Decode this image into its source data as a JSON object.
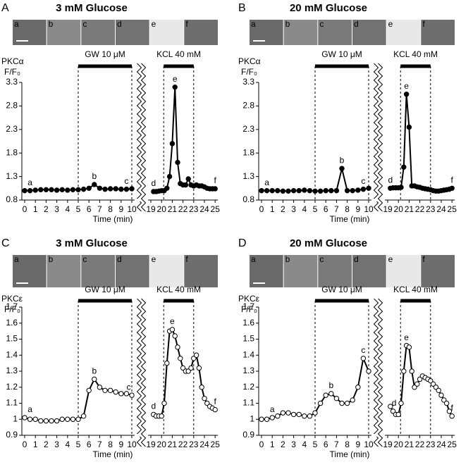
{
  "chart_data": [
    {
      "type": "line",
      "panel": "A",
      "title": "3 mM Glucose",
      "image_labels": [
        "a",
        "b",
        "c",
        "d",
        "e",
        "f"
      ],
      "ylabel": "PKCα",
      "yunit": "F/F₀",
      "xlabel": "Time (min)",
      "marker_fill": "#000000",
      "color": "#000000",
      "xlim": [
        0,
        25
      ],
      "xbreak": [
        10,
        19
      ],
      "xticks": [
        0,
        1,
        2,
        3,
        4,
        5,
        6,
        7,
        8,
        9,
        10,
        19,
        20,
        21,
        22,
        23,
        24,
        25
      ],
      "ylim": [
        0.8,
        3.3
      ],
      "yticks": [
        0.8,
        1.3,
        1.8,
        2.3,
        2.8,
        3.3
      ],
      "treatments": [
        {
          "label": "GW 10 μM",
          "start": 5,
          "end": 10
        },
        {
          "label": "KCL 40 mM",
          "start": 20.2,
          "end": 23
        }
      ],
      "x": [
        0,
        0.5,
        1,
        1.5,
        2,
        2.5,
        3,
        3.5,
        4,
        4.5,
        5,
        5.5,
        6,
        6.5,
        7,
        7.5,
        8,
        8.5,
        9,
        9.5,
        10,
        19.25,
        19.5,
        19.75,
        20,
        20.25,
        20.5,
        20.75,
        21,
        21.25,
        21.5,
        21.75,
        22,
        22.25,
        22.5,
        22.75,
        23,
        23.25,
        23.5,
        23.75,
        24,
        24.25,
        24.5,
        24.75,
        25
      ],
      "values": [
        1.0,
        1.0,
        1.01,
        1.02,
        1.02,
        1.02,
        1.01,
        1.02,
        1.01,
        1.02,
        1.02,
        1.03,
        1.05,
        1.13,
        1.05,
        1.03,
        1.04,
        1.04,
        1.03,
        1.03,
        1.04,
        0.98,
        0.98,
        0.99,
        1.0,
        1.0,
        1.05,
        1.3,
        2.0,
        3.2,
        1.6,
        1.15,
        1.12,
        1.12,
        1.25,
        1.12,
        1.1,
        1.12,
        1.1,
        1.1,
        1.08,
        1.05,
        1.04,
        1.04,
        1.04
      ],
      "annotations": [
        {
          "text": "a",
          "x": 0.5,
          "y": 1.0
        },
        {
          "text": "b",
          "x": 6.5,
          "y": 1.13
        },
        {
          "text": "c",
          "x": 9.5,
          "y": 1.03
        },
        {
          "text": "d",
          "x": 19.25,
          "y": 0.98
        },
        {
          "text": "e",
          "x": 21.25,
          "y": 3.2
        },
        {
          "text": "f",
          "x": 25,
          "y": 1.04
        }
      ]
    },
    {
      "type": "line",
      "panel": "B",
      "title": "20 mM Glucose",
      "image_labels": [
        "a",
        "b",
        "c",
        "d",
        "e",
        "f"
      ],
      "ylabel": "PKCα",
      "yunit": "F/F₀",
      "xlabel": "Time (min)",
      "marker_fill": "#000000",
      "color": "#000000",
      "xlim": [
        0,
        25
      ],
      "xbreak": [
        10,
        19
      ],
      "xticks": [
        0,
        1,
        2,
        3,
        4,
        5,
        6,
        7,
        8,
        9,
        10,
        19,
        20,
        21,
        22,
        23,
        24,
        25
      ],
      "ylim": [
        0.8,
        3.3
      ],
      "yticks": [
        0.8,
        1.3,
        1.8,
        2.3,
        2.8,
        3.3
      ],
      "treatments": [
        {
          "label": "GW 10 μM",
          "start": 5,
          "end": 10
        },
        {
          "label": "KCL 40 mM",
          "start": 20.2,
          "end": 23
        }
      ],
      "x": [
        0,
        0.5,
        1,
        1.5,
        2,
        2.5,
        3,
        3.5,
        4,
        4.5,
        5,
        5.5,
        6,
        6.5,
        7,
        7.5,
        8,
        8.5,
        9,
        9.5,
        10,
        19.25,
        19.5,
        19.75,
        20,
        20.25,
        20.5,
        20.75,
        21,
        21.25,
        21.5,
        21.75,
        22,
        22.25,
        22.5,
        22.75,
        23,
        23.25,
        23.5,
        23.75,
        24,
        24.25,
        24.5,
        24.75,
        25
      ],
      "values": [
        1.0,
        1.0,
        1.0,
        1.0,
        0.99,
        0.99,
        1.0,
        1.0,
        1.01,
        1.0,
        0.99,
        0.99,
        1.0,
        1.0,
        1.0,
        1.47,
        1.0,
        1.0,
        1.01,
        1.03,
        1.05,
        1.05,
        1.06,
        1.06,
        1.06,
        1.07,
        1.5,
        3.05,
        2.35,
        1.1,
        1.1,
        1.08,
        1.07,
        1.05,
        1.04,
        1.03,
        1.02,
        1.0,
        0.99,
        0.99,
        1.0,
        1.01,
        1.02,
        1.03,
        1.05
      ],
      "annotations": [
        {
          "text": "a",
          "x": 0.5,
          "y": 1.0
        },
        {
          "text": "b",
          "x": 7.5,
          "y": 1.47
        },
        {
          "text": "c",
          "x": 9.5,
          "y": 1.03
        },
        {
          "text": "d",
          "x": 19.25,
          "y": 1.05
        },
        {
          "text": "e",
          "x": 20.75,
          "y": 3.05
        },
        {
          "text": "f",
          "x": 25,
          "y": 1.05
        }
      ]
    },
    {
      "type": "line",
      "panel": "C",
      "title": "3 mM Glucose",
      "image_labels": [
        "a",
        "b",
        "c",
        "d",
        "e",
        "f"
      ],
      "ylabel": "PKCε",
      "yunit": "F/F₀",
      "xlabel": "Time (min)",
      "marker_fill": "#ffffff",
      "color": "#000000",
      "xlim": [
        0,
        25
      ],
      "xbreak": [
        10,
        19
      ],
      "xticks": [
        0,
        1,
        2,
        3,
        4,
        5,
        6,
        7,
        8,
        9,
        10,
        19,
        20,
        21,
        22,
        23,
        24,
        25
      ],
      "ylim": [
        0.9,
        1.7
      ],
      "yticks": [
        0.9,
        1,
        1.1,
        1.2,
        1.3,
        1.4,
        1.5,
        1.6,
        1.7
      ],
      "treatments": [
        {
          "label": "GW 10 μM",
          "start": 5,
          "end": 10
        },
        {
          "label": "KCL 40 mM",
          "start": 20.2,
          "end": 23
        }
      ],
      "x": [
        0,
        0.5,
        1,
        1.5,
        2,
        2.5,
        3,
        3.5,
        4,
        4.5,
        5,
        5.5,
        6,
        6.5,
        7,
        7.5,
        8,
        8.5,
        9,
        9.5,
        10,
        19.25,
        19.5,
        19.75,
        20,
        20.25,
        20.5,
        20.75,
        21,
        21.25,
        21.5,
        21.75,
        22,
        22.25,
        22.5,
        22.75,
        23,
        23.25,
        23.5,
        23.75,
        24,
        24.25,
        24.5,
        24.75,
        25
      ],
      "values": [
        1.01,
        1.0,
        1.0,
        0.99,
        0.99,
        0.99,
        0.99,
        1.0,
        1.0,
        1.0,
        1.0,
        1.02,
        1.18,
        1.25,
        1.2,
        1.18,
        1.18,
        1.17,
        1.16,
        1.16,
        1.15,
        1.03,
        1.02,
        1.02,
        1.02,
        1.1,
        1.35,
        1.55,
        1.56,
        1.52,
        1.45,
        1.38,
        1.32,
        1.3,
        1.3,
        1.32,
        1.38,
        1.4,
        1.32,
        1.2,
        1.13,
        1.1,
        1.08,
        1.07,
        1.06
      ],
      "annotations": [
        {
          "text": "a",
          "x": 0.5,
          "y": 1.01
        },
        {
          "text": "b",
          "x": 6.5,
          "y": 1.25
        },
        {
          "text": "c",
          "x": 9.7,
          "y": 1.15
        },
        {
          "text": "d",
          "x": 19.25,
          "y": 1.03
        },
        {
          "text": "e",
          "x": 21,
          "y": 1.56
        },
        {
          "text": "f",
          "x": 25,
          "y": 1.06
        }
      ]
    },
    {
      "type": "line",
      "panel": "D",
      "title": "20 mM Glucose",
      "image_labels": [
        "a",
        "b",
        "c",
        "d",
        "e",
        "f"
      ],
      "ylabel": "PKCε",
      "yunit": "F/F₀",
      "xlabel": "Time (min)",
      "marker_fill": "#ffffff",
      "color": "#000000",
      "xlim": [
        0,
        25
      ],
      "xbreak": [
        10,
        19
      ],
      "xticks": [
        0,
        1,
        2,
        3,
        4,
        5,
        6,
        7,
        8,
        9,
        10,
        19,
        20,
        21,
        22,
        23,
        24,
        25
      ],
      "ylim": [
        0.9,
        1.7
      ],
      "yticks": [
        0.9,
        1,
        1.1,
        1.2,
        1.3,
        1.4,
        1.5,
        1.6,
        1.7
      ],
      "treatments": [
        {
          "label": "GW 10 μM",
          "start": 5,
          "end": 10
        },
        {
          "label": "KCL 40 mM",
          "start": 20.2,
          "end": 23
        }
      ],
      "x": [
        0,
        0.5,
        1,
        1.5,
        2,
        2.5,
        3,
        3.5,
        4,
        4.5,
        5,
        5.5,
        6,
        6.5,
        7,
        7.5,
        8,
        8.5,
        9,
        9.5,
        10,
        19.25,
        19.5,
        19.75,
        20,
        20.25,
        20.5,
        20.75,
        21,
        21.25,
        21.5,
        21.75,
        22,
        22.25,
        22.5,
        22.75,
        23,
        23.25,
        23.5,
        23.75,
        24,
        24.25,
        24.5,
        24.75,
        25
      ],
      "values": [
        1.0,
        1.0,
        1.01,
        1.02,
        1.04,
        1.04,
        1.03,
        1.03,
        1.02,
        1.02,
        1.04,
        1.1,
        1.15,
        1.16,
        1.13,
        1.1,
        1.1,
        1.12,
        1.2,
        1.38,
        1.3,
        1.08,
        1.05,
        1.03,
        1.03,
        1.1,
        1.3,
        1.46,
        1.45,
        1.3,
        1.2,
        1.22,
        1.25,
        1.27,
        1.26,
        1.25,
        1.24,
        1.22,
        1.2,
        1.18,
        1.15,
        1.12,
        1.1,
        1.05,
        1.02
      ],
      "annotations": [
        {
          "text": "a",
          "x": 1,
          "y": 1.01
        },
        {
          "text": "b",
          "x": 6.5,
          "y": 1.16
        },
        {
          "text": "c",
          "x": 9.5,
          "y": 1.38
        },
        {
          "text": "d",
          "x": 19.6,
          "y": 1.05
        },
        {
          "text": "e",
          "x": 20.75,
          "y": 1.46
        },
        {
          "text": "f",
          "x": 25,
          "y": 1.02
        }
      ]
    }
  ]
}
